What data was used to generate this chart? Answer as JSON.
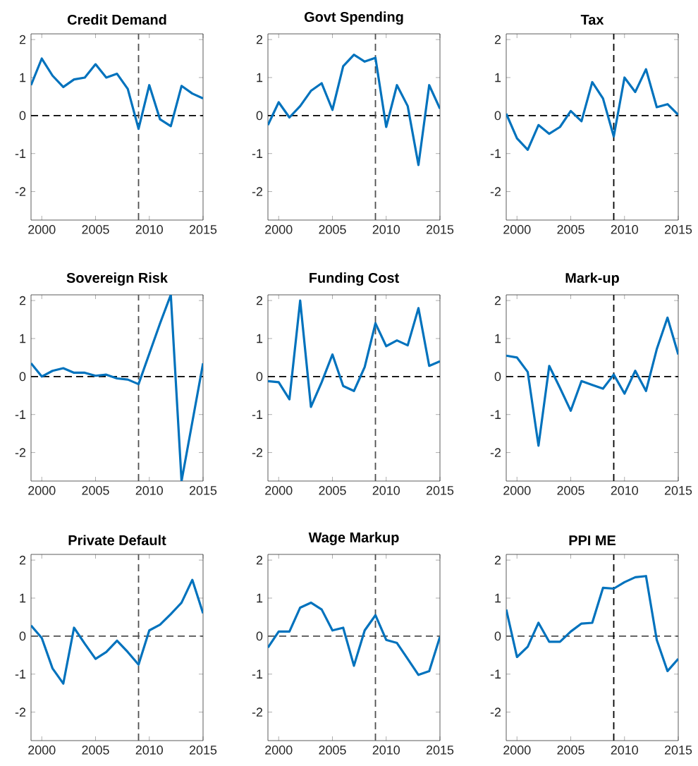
{
  "chart_data": [
    {
      "type": "line",
      "title": "Credit Demand",
      "x": [
        1999,
        2000,
        2001,
        2002,
        2003,
        2004,
        2005,
        2006,
        2007,
        2008,
        2009,
        2010,
        2011,
        2012,
        2013,
        2014,
        2015
      ],
      "color": "#0072bd",
      "line_style": "solid",
      "values": [
        0.8,
        1.5,
        1.05,
        0.75,
        0.95,
        1.0,
        1.35,
        1.0,
        1.1,
        0.7,
        -0.35,
        0.8,
        -0.1,
        -0.28,
        0.78,
        0.58,
        0.45
      ],
      "xlim": [
        1999,
        2015
      ],
      "ylim": [
        -2.75,
        2.15
      ],
      "xticks": [
        2000,
        2005,
        2010,
        2015
      ],
      "yticks": [
        -2,
        -1,
        0,
        1,
        2
      ],
      "ref_lines": [
        {
          "axis": "y",
          "value": 0,
          "color": "#000000",
          "line_style": "dashed"
        },
        {
          "axis": "x",
          "value": 2009,
          "color": "#505050",
          "line_style": "dashed"
        }
      ]
    },
    {
      "type": "line",
      "title": "Govt Spending",
      "x": [
        1999,
        2000,
        2001,
        2002,
        2003,
        2004,
        2005,
        2006,
        2007,
        2008,
        2009,
        2010,
        2011,
        2012,
        2013,
        2014,
        2015
      ],
      "color": "#0072bd",
      "line_style": "solid",
      "values": [
        -0.25,
        0.35,
        -0.05,
        0.25,
        0.65,
        0.85,
        0.15,
        1.3,
        1.6,
        1.42,
        1.52,
        -0.3,
        0.8,
        0.25,
        -1.3,
        0.8,
        0.18
      ],
      "xlim": [
        1999,
        2015
      ],
      "ylim": [
        -2.75,
        2.15
      ],
      "xticks": [
        2000,
        2005,
        2010,
        2015
      ],
      "yticks": [
        -2,
        -1,
        0,
        1,
        2
      ],
      "ref_lines": [
        {
          "axis": "y",
          "value": 0,
          "color": "#000000",
          "line_style": "dashed"
        },
        {
          "axis": "x",
          "value": 2009,
          "color": "#505050",
          "line_style": "dashed"
        }
      ]
    },
    {
      "type": "line",
      "title": "Tax",
      "x": [
        1999,
        2000,
        2001,
        2002,
        2003,
        2004,
        2005,
        2006,
        2007,
        2008,
        2009,
        2010,
        2011,
        2012,
        2013,
        2014,
        2015
      ],
      "color": "#0072bd",
      "line_style": "solid",
      "values": [
        0.05,
        -0.6,
        -0.9,
        -0.25,
        -0.48,
        -0.3,
        0.12,
        -0.15,
        0.88,
        0.45,
        -0.55,
        1.0,
        0.62,
        1.22,
        0.22,
        0.3,
        0.02
      ],
      "xlim": [
        1999,
        2015
      ],
      "ylim": [
        -2.75,
        2.15
      ],
      "xticks": [
        2000,
        2005,
        2010,
        2015
      ],
      "yticks": [
        -2,
        -1,
        0,
        1,
        2
      ],
      "ref_lines": [
        {
          "axis": "y",
          "value": 0,
          "color": "#000000",
          "line_style": "dashed"
        },
        {
          "axis": "x",
          "value": 2009,
          "color": "#000000",
          "line_style": "dashed"
        }
      ]
    },
    {
      "type": "line",
      "title": "Sovereign Risk",
      "x": [
        1999,
        2000,
        2001,
        2002,
        2003,
        2004,
        2005,
        2006,
        2007,
        2008,
        2009,
        2010,
        2011,
        2012,
        2013,
        2014,
        2015
      ],
      "color": "#0072bd",
      "line_style": "solid",
      "values": [
        0.35,
        0.0,
        0.15,
        0.22,
        0.1,
        0.1,
        0.02,
        0.05,
        -0.05,
        -0.08,
        -0.2,
        0.6,
        1.4,
        2.15,
        -2.75,
        -1.2,
        0.35
      ],
      "xlim": [
        1999,
        2015
      ],
      "ylim": [
        -2.75,
        2.15
      ],
      "xticks": [
        2000,
        2005,
        2010,
        2015
      ],
      "yticks": [
        -2,
        -1,
        0,
        1,
        2
      ],
      "ref_lines": [
        {
          "axis": "y",
          "value": 0,
          "color": "#000000",
          "line_style": "dashed"
        },
        {
          "axis": "x",
          "value": 2009,
          "color": "#505050",
          "line_style": "dashed"
        }
      ]
    },
    {
      "type": "line",
      "title": "Funding Cost",
      "x": [
        1999,
        2000,
        2001,
        2002,
        2003,
        2004,
        2005,
        2006,
        2007,
        2008,
        2009,
        2010,
        2011,
        2012,
        2013,
        2014,
        2015
      ],
      "color": "#0072bd",
      "line_style": "solid",
      "values": [
        -0.12,
        -0.15,
        -0.6,
        2.0,
        -0.8,
        -0.15,
        0.58,
        -0.25,
        -0.38,
        0.25,
        1.4,
        0.8,
        0.95,
        0.82,
        1.8,
        0.28,
        0.4
      ],
      "xlim": [
        1999,
        2015
      ],
      "ylim": [
        -2.75,
        2.15
      ],
      "xticks": [
        2000,
        2005,
        2010,
        2015
      ],
      "yticks": [
        -2,
        -1,
        0,
        1,
        2
      ],
      "ref_lines": [
        {
          "axis": "y",
          "value": 0,
          "color": "#000000",
          "line_style": "dashed"
        },
        {
          "axis": "x",
          "value": 2009,
          "color": "#505050",
          "line_style": "dashed"
        }
      ]
    },
    {
      "type": "line",
      "title": "Mark-up",
      "x": [
        1999,
        2000,
        2001,
        2002,
        2003,
        2004,
        2005,
        2006,
        2007,
        2008,
        2009,
        2010,
        2011,
        2012,
        2013,
        2014,
        2015
      ],
      "color": "#0072bd",
      "line_style": "solid",
      "values": [
        0.55,
        0.5,
        0.12,
        -1.82,
        0.28,
        -0.3,
        -0.9,
        -0.12,
        -0.22,
        -0.32,
        0.05,
        -0.45,
        0.15,
        -0.38,
        0.72,
        1.55,
        0.58
      ],
      "xlim": [
        1999,
        2015
      ],
      "ylim": [
        -2.75,
        2.15
      ],
      "xticks": [
        2000,
        2005,
        2010,
        2015
      ],
      "yticks": [
        -2,
        -1,
        0,
        1,
        2
      ],
      "ref_lines": [
        {
          "axis": "y",
          "value": 0,
          "color": "#000000",
          "line_style": "dashed"
        },
        {
          "axis": "x",
          "value": 2009,
          "color": "#000000",
          "line_style": "dashed"
        }
      ]
    },
    {
      "type": "line",
      "title": "Private Default",
      "x": [
        1999,
        2000,
        2001,
        2002,
        2003,
        2004,
        2005,
        2006,
        2007,
        2008,
        2009,
        2010,
        2011,
        2012,
        2013,
        2014,
        2015
      ],
      "color": "#0072bd",
      "line_style": "solid",
      "values": [
        0.28,
        -0.05,
        -0.85,
        -1.25,
        0.22,
        -0.2,
        -0.6,
        -0.42,
        -0.12,
        -0.42,
        -0.75,
        0.15,
        0.3,
        0.58,
        0.88,
        1.48,
        0.6
      ],
      "xlim": [
        1999,
        2015
      ],
      "ylim": [
        -2.75,
        2.15
      ],
      "xticks": [
        2000,
        2005,
        2010,
        2015
      ],
      "yticks": [
        -2,
        -1,
        0,
        1,
        2
      ],
      "ref_lines": [
        {
          "axis": "y",
          "value": 0,
          "color": "#505050",
          "line_style": "dashed"
        },
        {
          "axis": "x",
          "value": 2009,
          "color": "#505050",
          "line_style": "dashed"
        }
      ]
    },
    {
      "type": "line",
      "title": "Wage Markup",
      "x": [
        1999,
        2000,
        2001,
        2002,
        2003,
        2004,
        2005,
        2006,
        2007,
        2008,
        2009,
        2010,
        2011,
        2012,
        2013,
        2014,
        2015
      ],
      "color": "#0072bd",
      "line_style": "solid",
      "values": [
        -0.3,
        0.12,
        0.12,
        0.75,
        0.88,
        0.7,
        0.15,
        0.22,
        -0.78,
        0.15,
        0.55,
        -0.1,
        -0.18,
        -0.6,
        -1.02,
        -0.92,
        -0.02
      ],
      "xlim": [
        1999,
        2015
      ],
      "ylim": [
        -2.75,
        2.15
      ],
      "xticks": [
        2000,
        2005,
        2010,
        2015
      ],
      "yticks": [
        -2,
        -1,
        0,
        1,
        2
      ],
      "ref_lines": [
        {
          "axis": "y",
          "value": 0,
          "color": "#505050",
          "line_style": "dashed"
        },
        {
          "axis": "x",
          "value": 2009,
          "color": "#505050",
          "line_style": "dashed"
        }
      ]
    },
    {
      "type": "line",
      "title": "PPI ME",
      "x": [
        1999,
        2000,
        2001,
        2002,
        2003,
        2004,
        2005,
        2006,
        2007,
        2008,
        2009,
        2010,
        2011,
        2012,
        2013,
        2014,
        2015
      ],
      "color": "#0072bd",
      "line_style": "solid",
      "values": [
        0.7,
        -0.55,
        -0.28,
        0.35,
        -0.15,
        -0.15,
        0.12,
        0.33,
        0.35,
        1.27,
        1.25,
        1.42,
        1.55,
        1.58,
        -0.1,
        -0.92,
        -0.6
      ],
      "xlim": [
        1999,
        2015
      ],
      "ylim": [
        -2.75,
        2.15
      ],
      "xticks": [
        2000,
        2005,
        2010,
        2015
      ],
      "yticks": [
        -2,
        -1,
        0,
        1,
        2
      ],
      "ref_lines": [
        {
          "axis": "y",
          "value": 0,
          "color": "#505050",
          "line_style": "dashed"
        },
        {
          "axis": "x",
          "value": 2009,
          "color": "#000000",
          "line_style": "dashed"
        }
      ]
    }
  ]
}
